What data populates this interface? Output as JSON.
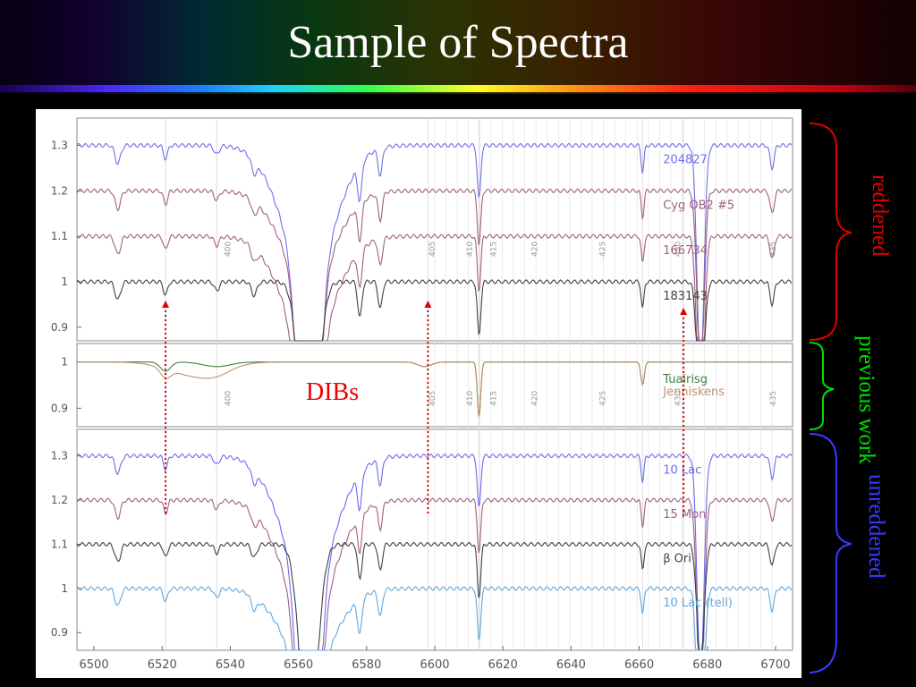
{
  "slide": {
    "title": "Sample of Spectra",
    "side_labels": {
      "reddened": "reddened",
      "previous_work": "previous work",
      "unreddened": "unreddened"
    },
    "annotation": "DIBs",
    "colors": {
      "reddened": "#e00000",
      "previous_work": "#00e000",
      "unreddened": "#3a3aff",
      "dibs": "#ee0000"
    }
  },
  "chart_data": {
    "type": "line",
    "xlabel": "",
    "ylabel": "",
    "xlim": [
      6495,
      6705
    ],
    "x_ticks": [
      6500,
      6520,
      6540,
      6560,
      6580,
      6600,
      6620,
      6640,
      6660,
      6680,
      6700
    ],
    "dib_arrows_x": [
      6521,
      6598,
      6673
    ],
    "panels": [
      {
        "name": "top",
        "ylim": [
          0.87,
          1.36
        ],
        "y_ticks": [
          1.3,
          1.2,
          1.1,
          1,
          0.9
        ],
        "annotations": [
          "400",
          "405",
          "410",
          "415",
          "420",
          "425",
          "430",
          "435"
        ],
        "series": [
          {
            "name": "204827",
            "color": "#7070e8",
            "offset": 1.3,
            "h": 1.0
          },
          {
            "name": "Cyg OB2 #5",
            "color": "#a06080",
            "offset": 1.2,
            "h": 0.7
          },
          {
            "name": "166734",
            "color": "#a06080",
            "offset": 1.1,
            "h": 0.8
          },
          {
            "name": "183143",
            "color": "#404040",
            "offset": 1.0,
            "h": 0.2
          }
        ]
      },
      {
        "name": "middle",
        "ylim": [
          0.86,
          1.04
        ],
        "y_ticks": [
          1,
          0.9
        ],
        "annotations": [
          "400",
          "405",
          "410",
          "415",
          "420",
          "425",
          "430",
          "435"
        ],
        "series": [
          {
            "name": "Tuairisg",
            "color": "#408040",
            "offset": 1.0,
            "h": 0
          },
          {
            "name": "Jenniskens",
            "color": "#c09070",
            "offset": 1.0,
            "h": 0
          }
        ]
      },
      {
        "name": "bottom",
        "ylim": [
          0.86,
          1.36
        ],
        "y_ticks": [
          1.3,
          1.2,
          1.1,
          1,
          0.9
        ],
        "annotations": [],
        "series": [
          {
            "name": "10 Lac",
            "color": "#6a6af0",
            "offset": 1.3,
            "h": 1.0
          },
          {
            "name": "15 Mon",
            "color": "#a06080",
            "offset": 1.2,
            "h": 0.9
          },
          {
            "name": "β Ori",
            "color": "#404040",
            "offset": 1.1,
            "h": 0.15
          },
          {
            "name": "10 Lac (tell)",
            "color": "#60a8e0",
            "offset": 1.0,
            "h": 0.6
          }
        ]
      }
    ],
    "grid": true
  }
}
